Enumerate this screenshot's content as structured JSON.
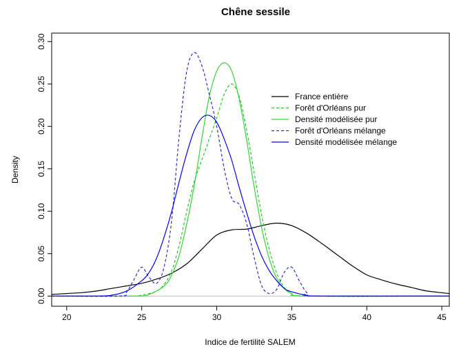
{
  "chart_data": {
    "type": "line",
    "title": "Chêne sessile",
    "xlabel": "Indice de fertilité SALEM",
    "ylabel": "Density",
    "xlim": [
      19,
      45.5
    ],
    "ylim": [
      0,
      0.31
    ],
    "x_ticks": [
      20,
      25,
      30,
      35,
      40,
      45
    ],
    "y_ticks": [
      0.0,
      0.05,
      0.1,
      0.15,
      0.2,
      0.25,
      0.3
    ],
    "x_tick_labels": [
      "20",
      "25",
      "30",
      "35",
      "40",
      "45"
    ],
    "y_tick_labels": [
      "0.00",
      "0.05",
      "0.10",
      "0.15",
      "0.20",
      "0.25",
      "0.30"
    ],
    "grid": false,
    "baseline": {
      "y": 0,
      "color": "#bebebe"
    },
    "legend_position": "top-right",
    "series": [
      {
        "name": "France entière",
        "color": "#000000",
        "dashed": false,
        "x": [
          19,
          20,
          21,
          22,
          23,
          24,
          25,
          26,
          27,
          28,
          29,
          30,
          31,
          32,
          33,
          34,
          35,
          36,
          37,
          38,
          39,
          40,
          41,
          42,
          43,
          44,
          45.5
        ],
        "y": [
          0.002,
          0.003,
          0.004,
          0.006,
          0.009,
          0.012,
          0.015,
          0.02,
          0.027,
          0.038,
          0.055,
          0.072,
          0.078,
          0.079,
          0.083,
          0.086,
          0.083,
          0.074,
          0.062,
          0.049,
          0.036,
          0.025,
          0.019,
          0.014,
          0.01,
          0.006,
          0.003
        ]
      },
      {
        "name": "Forêt d'Orléans pur",
        "color": "#1fc81f",
        "dashed": true,
        "x": [
          19,
          24,
          25,
          26,
          26.5,
          27,
          27.5,
          28,
          28.5,
          29,
          29.5,
          30,
          30.5,
          31,
          31.5,
          32,
          32.5,
          33,
          33.5,
          34,
          34.5,
          35,
          36,
          45.5
        ],
        "y": [
          0,
          0,
          0.001,
          0.006,
          0.014,
          0.03,
          0.06,
          0.1,
          0.135,
          0.16,
          0.185,
          0.21,
          0.238,
          0.25,
          0.235,
          0.195,
          0.145,
          0.095,
          0.055,
          0.027,
          0.01,
          0.003,
          0.0,
          0
        ]
      },
      {
        "name": "Densité modélisée pur",
        "color": "#2adb2a",
        "dashed": false,
        "x": [
          19,
          24.5,
          25.5,
          26.5,
          27,
          27.5,
          28,
          28.5,
          29,
          29.5,
          30,
          30.5,
          31,
          31.5,
          32,
          32.5,
          33,
          33.5,
          34,
          34.5,
          35,
          36,
          45.5
        ],
        "y": [
          0,
          0,
          0.002,
          0.012,
          0.025,
          0.048,
          0.085,
          0.13,
          0.185,
          0.235,
          0.265,
          0.275,
          0.265,
          0.232,
          0.183,
          0.128,
          0.08,
          0.044,
          0.021,
          0.009,
          0.003,
          0.0,
          0
        ]
      },
      {
        "name": "Forêt d'Orléans mélange",
        "color": "#2b2bd8",
        "dashed": true,
        "x": [
          19,
          23.5,
          24,
          24.5,
          25,
          25.5,
          26,
          26.5,
          27,
          27.5,
          28,
          28.5,
          29,
          29.5,
          30,
          30.5,
          31,
          31.5,
          32,
          32.5,
          33,
          33.5,
          34,
          34.5,
          35,
          35.5,
          36,
          36.5,
          45.5
        ],
        "y": [
          0,
          0,
          0.005,
          0.02,
          0.034,
          0.022,
          0.015,
          0.035,
          0.09,
          0.19,
          0.265,
          0.287,
          0.272,
          0.238,
          0.2,
          0.15,
          0.115,
          0.108,
          0.085,
          0.045,
          0.012,
          0.003,
          0.008,
          0.028,
          0.034,
          0.018,
          0.004,
          0.0,
          0
        ]
      },
      {
        "name": "Densité modélisée mélange",
        "color": "#0000ff",
        "dashed": false,
        "x": [
          19,
          22,
          23,
          24,
          25,
          25.5,
          26,
          26.5,
          27,
          27.5,
          28,
          28.5,
          29,
          29.5,
          30,
          30.5,
          31,
          31.5,
          32,
          32.5,
          33,
          33.5,
          34,
          34.5,
          35,
          36,
          37,
          45.5
        ],
        "y": [
          0,
          0,
          0.001,
          0.006,
          0.018,
          0.028,
          0.045,
          0.07,
          0.1,
          0.135,
          0.168,
          0.195,
          0.21,
          0.213,
          0.205,
          0.185,
          0.16,
          0.128,
          0.098,
          0.07,
          0.047,
          0.03,
          0.018,
          0.009,
          0.005,
          0.001,
          0,
          0
        ]
      }
    ]
  }
}
